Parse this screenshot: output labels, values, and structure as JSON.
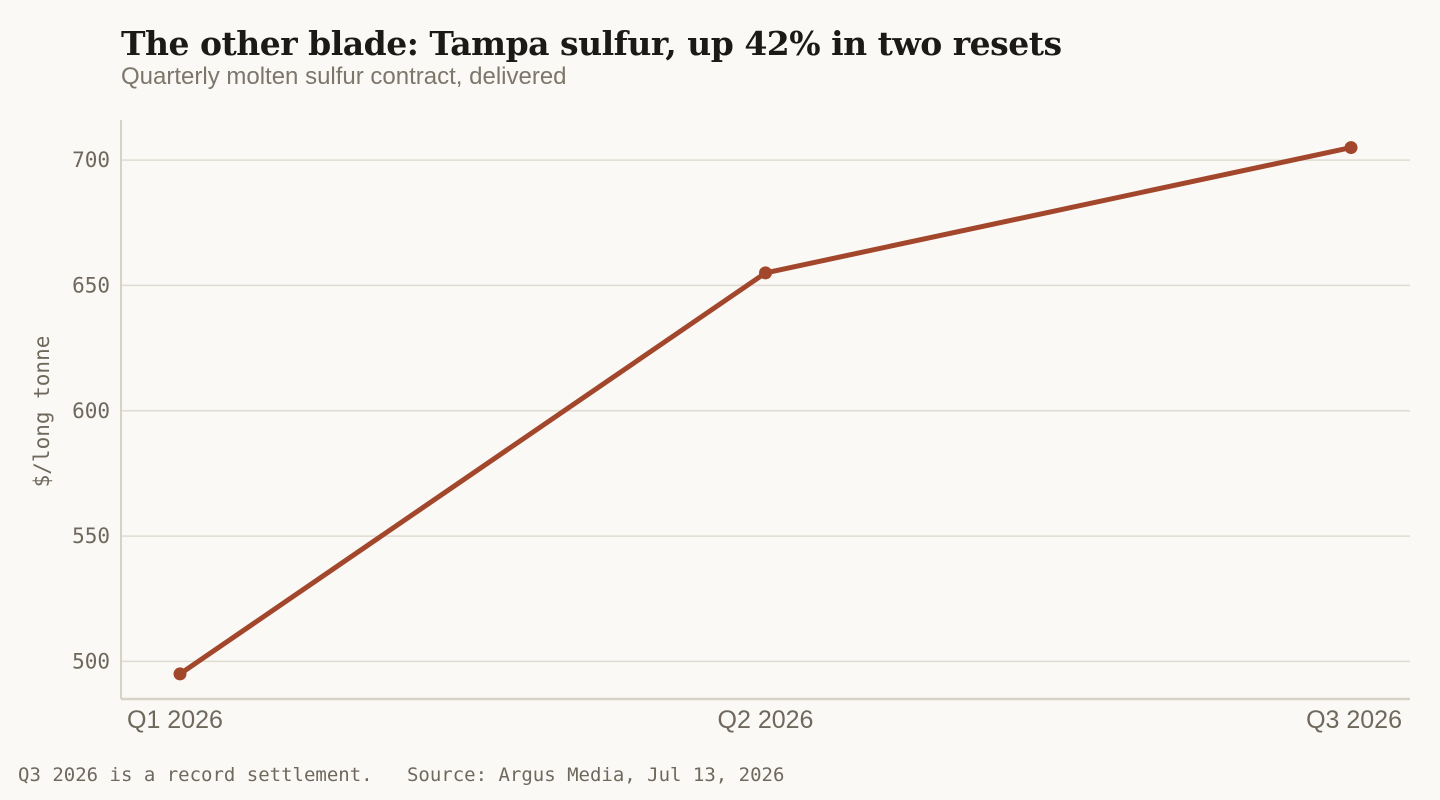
{
  "chart_data": {
    "type": "line",
    "title": "The other blade: Tampa sulfur, up 42% in two resets",
    "subtitle": "Quarterly molten sulfur contract, delivered",
    "xlabel": "",
    "ylabel": "$/long tonne",
    "categories": [
      "Q1 2026",
      "Q2 2026",
      "Q3 2026"
    ],
    "series": [
      {
        "values": [
          495,
          655,
          705
        ]
      }
    ],
    "ylim": [
      485,
      716
    ],
    "yticks": [
      500,
      550,
      600,
      650,
      700
    ],
    "grid": true,
    "legend": "none"
  },
  "colors": {
    "line": "#a3472c",
    "grid": "#dedbd0",
    "axis": "#d6d2c6",
    "tick_text": "#6f685d"
  },
  "footnote": {
    "note": "Q3 2026 is a record settlement.",
    "source": "Source: Argus Media, Jul 13, 2026"
  }
}
